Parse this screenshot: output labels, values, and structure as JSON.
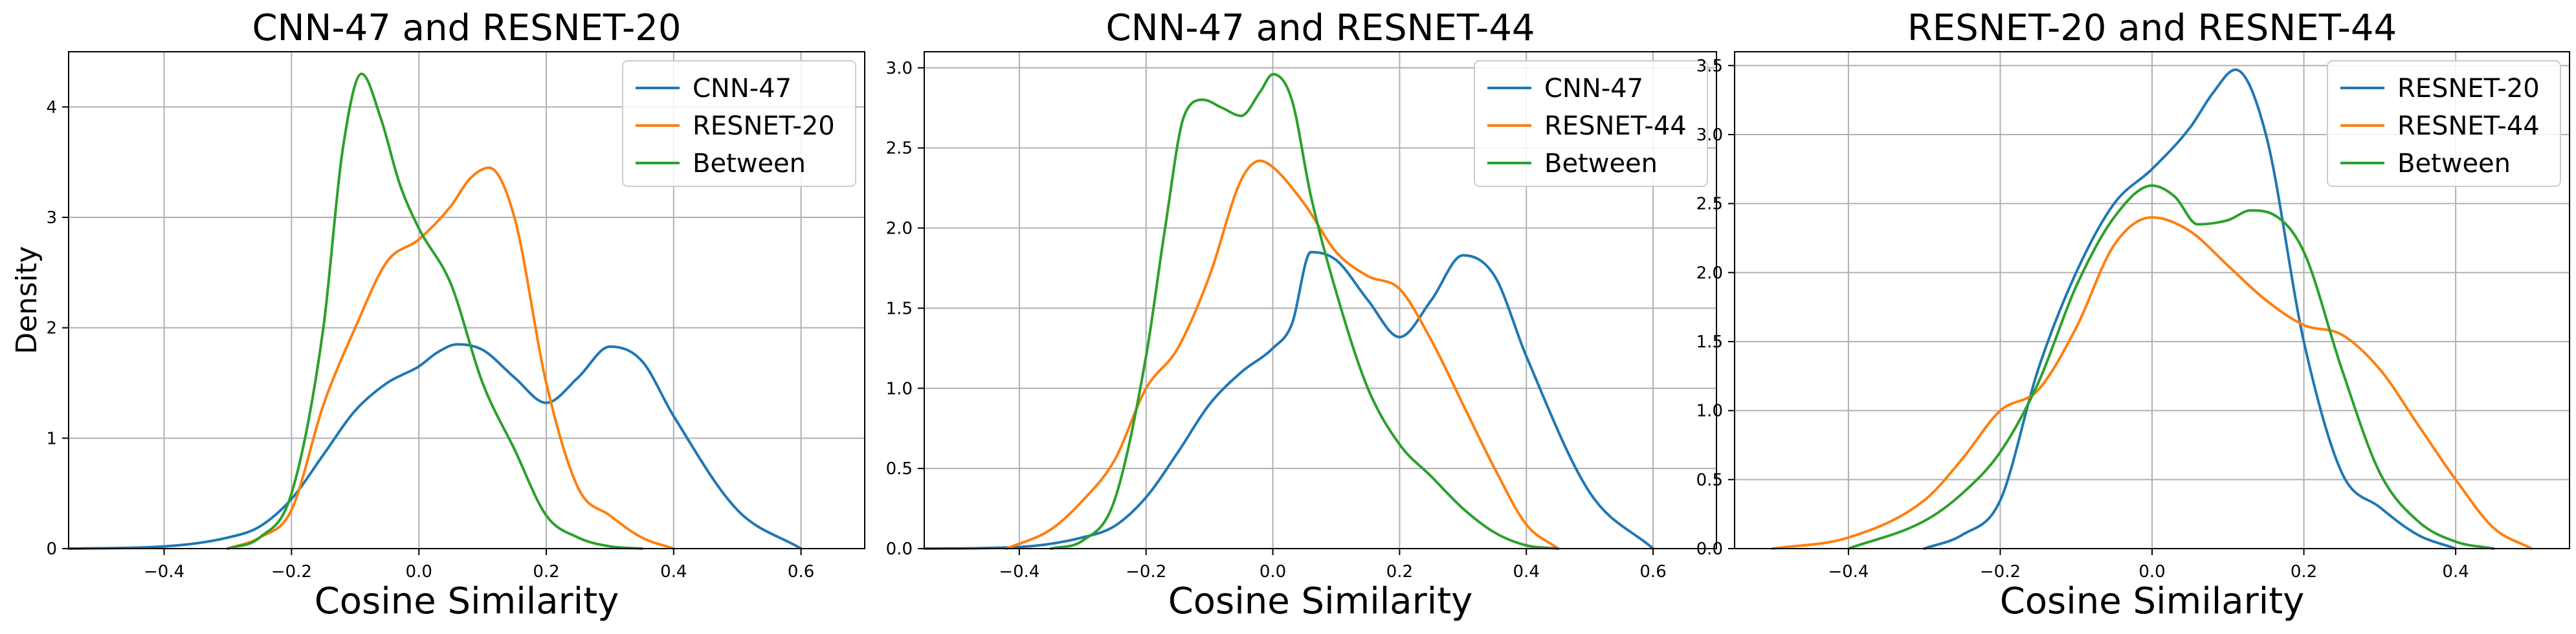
{
  "chart_data": [
    {
      "type": "line",
      "title": "CNN-47 and RESNET-20",
      "xlabel": "Cosine Similarity",
      "ylabel": "Density",
      "xlim": [
        -0.55,
        0.7
      ],
      "ylim": [
        0,
        4.5
      ],
      "xticks": [
        -0.4,
        -0.2,
        0.0,
        0.2,
        0.4,
        0.6
      ],
      "xtick_labels": [
        "−0.4",
        "−0.2",
        "0.0",
        "0.2",
        "0.4",
        "0.6"
      ],
      "yticks": [
        0,
        1,
        2,
        3,
        4
      ],
      "ytick_labels": [
        "0",
        "1",
        "2",
        "3",
        "4"
      ],
      "grid": true,
      "legend": "top-right",
      "series": [
        {
          "name": "CNN-47",
          "color": "#1f77b4",
          "x": [
            -0.55,
            -0.4,
            -0.3,
            -0.25,
            -0.2,
            -0.15,
            -0.1,
            -0.05,
            0.0,
            0.03,
            0.06,
            0.1,
            0.15,
            0.2,
            0.25,
            0.3,
            0.35,
            0.4,
            0.5,
            0.6
          ],
          "y": [
            0,
            0.02,
            0.1,
            0.2,
            0.45,
            0.85,
            1.25,
            1.5,
            1.65,
            1.78,
            1.85,
            1.8,
            1.55,
            1.32,
            1.55,
            1.83,
            1.7,
            1.2,
            0.35,
            0
          ]
        },
        {
          "name": "RESNET-20",
          "color": "#ff7f0e",
          "x": [
            -0.3,
            -0.25,
            -0.2,
            -0.15,
            -0.1,
            -0.05,
            0.0,
            0.05,
            0.08,
            0.11,
            0.15,
            0.2,
            0.25,
            0.3,
            0.35,
            0.4
          ],
          "y": [
            0,
            0.1,
            0.35,
            1.3,
            2.0,
            2.6,
            2.8,
            3.1,
            3.35,
            3.45,
            3.0,
            1.5,
            0.55,
            0.3,
            0.1,
            0
          ]
        },
        {
          "name": "Between",
          "color": "#2ca02c",
          "x": [
            -0.3,
            -0.25,
            -0.2,
            -0.15,
            -0.12,
            -0.09,
            -0.06,
            -0.03,
            0.0,
            0.05,
            0.1,
            0.15,
            0.2,
            0.25,
            0.3,
            0.35
          ],
          "y": [
            0,
            0.1,
            0.5,
            2.0,
            3.6,
            4.3,
            3.9,
            3.3,
            2.9,
            2.4,
            1.5,
            0.9,
            0.3,
            0.1,
            0.02,
            0
          ]
        }
      ]
    },
    {
      "type": "line",
      "title": "CNN-47 and RESNET-44",
      "xlabel": "Cosine Similarity",
      "ylabel": "",
      "xlim": [
        -0.55,
        0.7
      ],
      "ylim": [
        0,
        3.1
      ],
      "xticks": [
        -0.4,
        -0.2,
        0.0,
        0.2,
        0.4,
        0.6
      ],
      "xtick_labels": [
        "−0.4",
        "−0.2",
        "0.0",
        "0.2",
        "0.4",
        "0.6"
      ],
      "yticks": [
        0.0,
        0.5,
        1.0,
        1.5,
        2.0,
        2.5,
        3.0
      ],
      "ytick_labels": [
        "0.0",
        "0.5",
        "1.0",
        "1.5",
        "2.0",
        "2.5",
        "3.0"
      ],
      "grid": true,
      "legend": "top-right",
      "series": [
        {
          "name": "CNN-47",
          "color": "#1f77b4",
          "x": [
            -0.55,
            -0.4,
            -0.3,
            -0.25,
            -0.2,
            -0.15,
            -0.1,
            -0.05,
            0.0,
            0.03,
            0.06,
            0.1,
            0.15,
            0.2,
            0.25,
            0.3,
            0.35,
            0.4,
            0.5,
            0.6
          ],
          "y": [
            0,
            0.01,
            0.07,
            0.14,
            0.32,
            0.6,
            0.9,
            1.1,
            1.25,
            1.4,
            1.85,
            1.8,
            1.55,
            1.32,
            1.55,
            1.83,
            1.7,
            1.2,
            0.35,
            0
          ]
        },
        {
          "name": "RESNET-44",
          "color": "#ff7f0e",
          "x": [
            -0.42,
            -0.35,
            -0.3,
            -0.25,
            -0.2,
            -0.15,
            -0.1,
            -0.05,
            -0.02,
            0.0,
            0.05,
            0.1,
            0.15,
            0.2,
            0.25,
            0.3,
            0.35,
            0.4,
            0.45
          ],
          "y": [
            0,
            0.12,
            0.3,
            0.55,
            1.0,
            1.25,
            1.7,
            2.3,
            2.42,
            2.38,
            2.15,
            1.85,
            1.7,
            1.62,
            1.3,
            0.9,
            0.5,
            0.15,
            0
          ]
        },
        {
          "name": "Between",
          "color": "#2ca02c",
          "x": [
            -0.35,
            -0.3,
            -0.25,
            -0.2,
            -0.17,
            -0.14,
            -0.11,
            -0.08,
            -0.05,
            -0.02,
            0.0,
            0.03,
            0.06,
            0.1,
            0.15,
            0.2,
            0.25,
            0.3,
            0.35,
            0.4,
            0.45
          ],
          "y": [
            0,
            0.05,
            0.3,
            1.2,
            2.0,
            2.7,
            2.8,
            2.75,
            2.7,
            2.85,
            2.96,
            2.8,
            2.2,
            1.6,
            1.0,
            0.65,
            0.45,
            0.25,
            0.1,
            0.02,
            0
          ]
        }
      ]
    },
    {
      "type": "line",
      "title": "RESNET-20 and RESNET-44",
      "xlabel": "Cosine Similarity",
      "ylabel": "",
      "xlim": [
        -0.55,
        0.55
      ],
      "ylim": [
        0,
        3.6
      ],
      "xticks": [
        -0.4,
        -0.2,
        0.0,
        0.2,
        0.4
      ],
      "xtick_labels": [
        "−0.4",
        "−0.2",
        "0.0",
        "0.2",
        "0.4"
      ],
      "yticks": [
        0.0,
        0.5,
        1.0,
        1.5,
        2.0,
        2.5,
        3.0,
        3.5
      ],
      "ytick_labels": [
        "0.0",
        "0.5",
        "1.0",
        "1.5",
        "2.0",
        "2.5",
        "3.0",
        "3.5"
      ],
      "grid": true,
      "legend": "top-right",
      "series": [
        {
          "name": "RESNET-20",
          "color": "#1f77b4",
          "x": [
            -0.3,
            -0.25,
            -0.2,
            -0.15,
            -0.1,
            -0.05,
            0.0,
            0.05,
            0.08,
            0.11,
            0.15,
            0.2,
            0.25,
            0.3,
            0.35,
            0.4
          ],
          "y": [
            0,
            0.1,
            0.35,
            1.3,
            2.0,
            2.5,
            2.75,
            3.05,
            3.3,
            3.47,
            3.0,
            1.5,
            0.55,
            0.3,
            0.1,
            0
          ]
        },
        {
          "name": "RESNET-44",
          "color": "#ff7f0e",
          "x": [
            -0.5,
            -0.4,
            -0.3,
            -0.25,
            -0.2,
            -0.15,
            -0.1,
            -0.05,
            0.0,
            0.05,
            0.1,
            0.15,
            0.2,
            0.25,
            0.3,
            0.35,
            0.4,
            0.45,
            0.5
          ],
          "y": [
            0,
            0.08,
            0.35,
            0.65,
            1.0,
            1.15,
            1.6,
            2.2,
            2.4,
            2.3,
            2.05,
            1.8,
            1.62,
            1.55,
            1.3,
            0.9,
            0.5,
            0.15,
            0
          ]
        },
        {
          "name": "Between",
          "color": "#2ca02c",
          "x": [
            -0.4,
            -0.3,
            -0.25,
            -0.2,
            -0.15,
            -0.1,
            -0.05,
            0.0,
            0.03,
            0.06,
            0.1,
            0.13,
            0.16,
            0.2,
            0.25,
            0.3,
            0.35,
            0.4,
            0.45
          ],
          "y": [
            0,
            0.2,
            0.4,
            0.7,
            1.2,
            1.9,
            2.4,
            2.63,
            2.55,
            2.35,
            2.38,
            2.45,
            2.42,
            2.15,
            1.3,
            0.55,
            0.2,
            0.05,
            0
          ]
        }
      ]
    }
  ]
}
